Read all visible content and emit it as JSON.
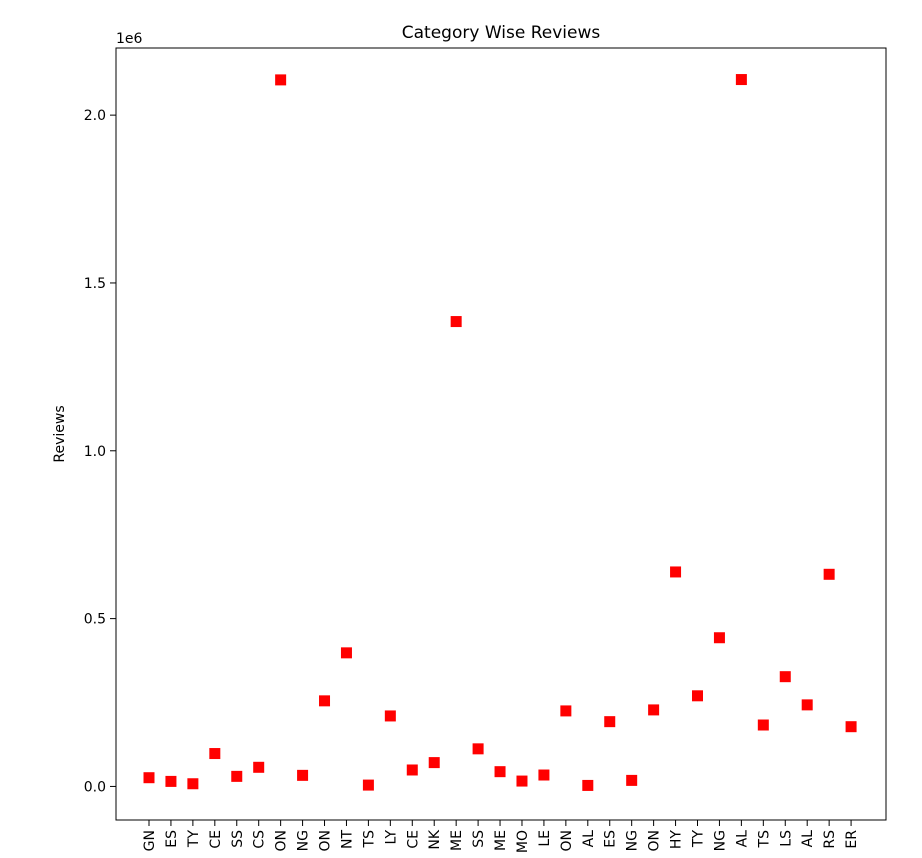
{
  "chart_data": {
    "type": "scatter",
    "title": "Category Wise Reviews",
    "xlabel": "",
    "ylabel": "Reviews",
    "offset_text": "1e6",
    "marker": "square",
    "marker_color": "#ff0000",
    "grid": false,
    "ylim": [
      -0.1,
      2.2
    ],
    "y_ticks": [
      0.0,
      0.5,
      1.0,
      1.5,
      2.0
    ],
    "y_tick_labels": [
      "0.0",
      "0.5",
      "1.0",
      "1.5",
      "2.0"
    ],
    "categories": [
      "GN",
      "ES",
      "TY",
      "CE",
      "SS",
      "CS",
      "ON",
      "NG",
      "ON",
      "NT",
      "TS",
      "LY",
      "CE",
      "NK",
      "ME",
      "SS",
      "ME",
      "MO",
      "LE",
      "ON",
      "AL",
      "ES",
      "NG",
      "ON",
      "HY",
      "TY",
      "NG",
      "AL",
      "TS",
      "LS",
      "AL",
      "RS",
      "ER"
    ],
    "values": [
      0.026,
      0.015,
      0.008,
      0.098,
      0.03,
      0.057,
      2.105,
      0.033,
      0.255,
      0.398,
      0.004,
      0.21,
      0.049,
      0.071,
      1.385,
      0.112,
      0.044,
      0.016,
      0.034,
      0.225,
      0.003,
      0.193,
      0.018,
      0.228,
      0.639,
      0.27,
      0.443,
      2.106,
      0.183,
      0.327,
      0.243,
      0.632,
      0.178
    ]
  }
}
